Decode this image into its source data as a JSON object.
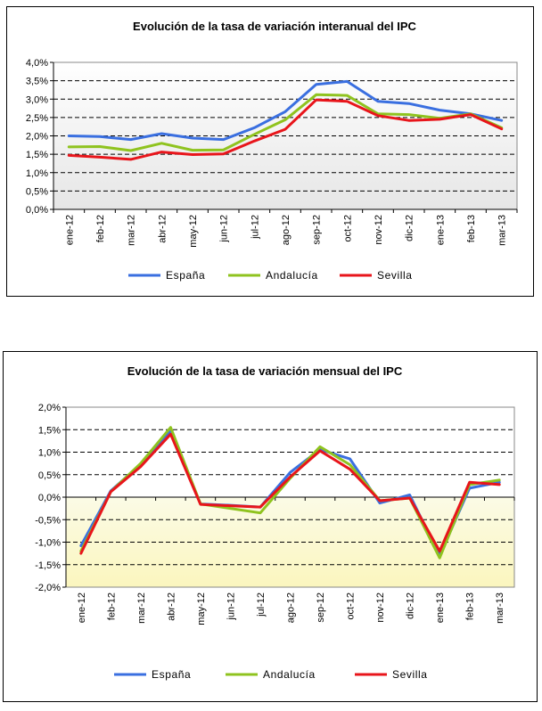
{
  "chart_data": [
    {
      "type": "line",
      "title": "Evolución de la tasa de variación interanual del IPC",
      "xlabel": "",
      "ylabel": "",
      "categories": [
        "ene-12",
        "feb-12",
        "mar-12",
        "abr-12",
        "may-12",
        "jun-12",
        "jul-12",
        "ago-12",
        "sep-12",
        "oct-12",
        "nov-12",
        "dic-12",
        "ene-13",
        "feb-13",
        "mar-13"
      ],
      "ylim": [
        0,
        4
      ],
      "y_ticks": [
        "0,0%",
        "0,5%",
        "1,0%",
        "1,5%",
        "2,0%",
        "2,5%",
        "3,0%",
        "3,5%",
        "4,0%"
      ],
      "series": [
        {
          "name": "España",
          "color": "#3a6fe0",
          "values": [
            2.0,
            1.98,
            1.9,
            2.06,
            1.94,
            1.9,
            2.22,
            2.66,
            3.4,
            3.48,
            2.94,
            2.88,
            2.7,
            2.6,
            2.42
          ]
        },
        {
          "name": "Andalucía",
          "color": "#8fc31f",
          "values": [
            1.7,
            1.71,
            1.6,
            1.8,
            1.61,
            1.62,
            2.04,
            2.44,
            3.12,
            3.1,
            2.6,
            2.58,
            2.48,
            2.6,
            2.22
          ]
        },
        {
          "name": "Sevilla",
          "color": "#e8151b",
          "values": [
            1.47,
            1.42,
            1.36,
            1.56,
            1.49,
            1.51,
            1.86,
            2.18,
            2.98,
            2.94,
            2.55,
            2.42,
            2.45,
            2.58,
            2.19
          ]
        }
      ],
      "grid": true,
      "legend": "bottom"
    },
    {
      "type": "line",
      "title": "Evolución de la tasa de variación mensual del IPC",
      "xlabel": "",
      "ylabel": "",
      "categories": [
        "ene-12",
        "feb-12",
        "mar-12",
        "abr-12",
        "may-12",
        "jun-12",
        "jul-12",
        "ago-12",
        "sep-12",
        "oct-12",
        "nov-12",
        "dic-12",
        "ene-13",
        "feb-13",
        "mar-13"
      ],
      "ylim": [
        -2,
        2
      ],
      "y_ticks": [
        "-2,0%",
        "-1,5%",
        "-1,0%",
        "-0,5%",
        "0,0%",
        "0,5%",
        "1,0%",
        "1,5%",
        "2,0%"
      ],
      "series": [
        {
          "name": "España",
          "color": "#3a6fe0",
          "values": [
            -1.08,
            0.14,
            0.73,
            1.46,
            -0.15,
            -0.18,
            -0.22,
            0.55,
            1.06,
            0.85,
            -0.13,
            0.05,
            -1.3,
            0.2,
            0.33
          ]
        },
        {
          "name": "Andalucía",
          "color": "#8fc31f",
          "values": [
            -1.2,
            0.12,
            0.75,
            1.55,
            -0.15,
            -0.25,
            -0.35,
            0.42,
            1.12,
            0.72,
            -0.08,
            -0.02,
            -1.35,
            0.28,
            0.38
          ]
        },
        {
          "name": "Sevilla",
          "color": "#e8151b",
          "values": [
            -1.25,
            0.12,
            0.68,
            1.4,
            -0.16,
            -0.19,
            -0.22,
            0.45,
            1.03,
            0.62,
            -0.08,
            -0.02,
            -1.2,
            0.33,
            0.28
          ]
        }
      ],
      "grid": true,
      "legend": "bottom"
    }
  ]
}
